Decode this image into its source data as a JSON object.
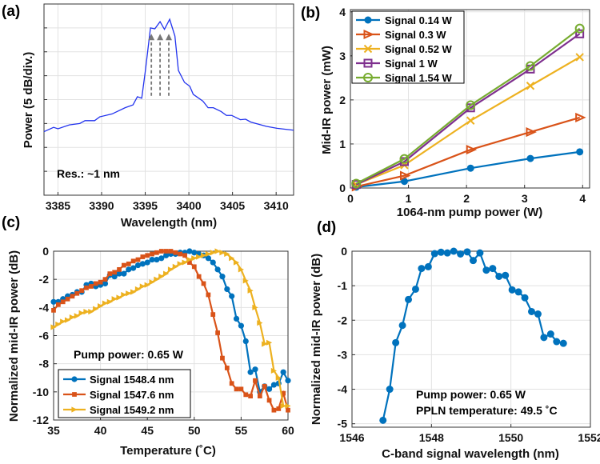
{
  "chart_data": [
    {
      "panel_label": "(a)",
      "type": "line",
      "title": "",
      "xlabel": "Wavelength (nm)",
      "ylabel": "Power (5 dB/div.)",
      "xlim": [
        3383.4,
        3412
      ],
      "ylim": [
        -40,
        0
      ],
      "xticks": [
        3385,
        3390,
        3395,
        3400,
        3405,
        3410
      ],
      "xtick_labels": [
        "3385",
        "3390",
        "3395",
        "3400",
        "3405",
        "3410"
      ],
      "yticks": [
        -40,
        -35,
        -30,
        -25,
        -20,
        -15,
        -10,
        -5,
        0
      ],
      "grid": true,
      "annotation": "Res.: ~1 nm",
      "arrows_x": [
        3395.7,
        3396.7,
        3397.7
      ],
      "arrows_y": [
        -19.2,
        -6.4
      ],
      "line_color": "#2233ee",
      "arrow_color": "#777777",
      "x": [
        3383.4,
        3384.5,
        3385,
        3386.3,
        3387.5,
        3388.1,
        3389.2,
        3389.8,
        3391.2,
        3392.7,
        3393.6,
        3394.1,
        3394.6,
        3395.0,
        3395.6,
        3396.1,
        3396.7,
        3397.2,
        3397.8,
        3398.4,
        3398.8,
        3399.5,
        3400.1,
        3400.5,
        3401.6,
        3402.2,
        3402.8,
        3403.7,
        3404.3,
        3404.9,
        3405.9,
        3406.5,
        3407.1,
        3408.9,
        3410.1,
        3412
      ],
      "y": [
        -26.7,
        -25.8,
        -26.1,
        -25.3,
        -25,
        -24.4,
        -24.4,
        -23.6,
        -23.0,
        -21.7,
        -21.1,
        -19.4,
        -19.7,
        -14.2,
        -5.0,
        -5.2,
        -3.7,
        -5.3,
        -3.2,
        -6.7,
        -13.9,
        -16.4,
        -17.2,
        -18.9,
        -20.3,
        -21.7,
        -21.7,
        -22.5,
        -23.3,
        -23.3,
        -24.2,
        -24.1,
        -24.7,
        -25.6,
        -26.0,
        -26.4
      ]
    },
    {
      "panel_label": "(b)",
      "type": "line",
      "title": "",
      "xlabel": "1064-nm pump power (W)",
      "ylabel": "Mid-IR power (mW)",
      "xlim": [
        0,
        4.12
      ],
      "ylim": [
        0,
        4.05
      ],
      "xticks": [
        0,
        1,
        2,
        3,
        4
      ],
      "xtick_labels": [
        "0",
        "1",
        "2",
        "3",
        "4"
      ],
      "yticks": [
        0,
        1,
        2,
        3,
        4
      ],
      "ytick_labels": [
        "0",
        "1",
        "2",
        "3",
        "4"
      ],
      "grid": true,
      "legend_placement": "top-left",
      "x": [
        0.1,
        0.93,
        2.07,
        3.1,
        3.95
      ],
      "series": [
        {
          "name": "Signal 0.14 W",
          "color": "#0072BD",
          "marker": "circle-filled",
          "values": [
            0.02,
            0.15,
            0.45,
            0.67,
            0.82
          ]
        },
        {
          "name": "Signal 0.3 W",
          "color": "#D95319",
          "marker": "triangle-right-open",
          "values": [
            0.03,
            0.28,
            0.87,
            1.27,
            1.6
          ]
        },
        {
          "name": "Signal 0.52 W",
          "color": "#EDB120",
          "marker": "x",
          "values": [
            0.08,
            0.52,
            1.53,
            2.32,
            2.97
          ]
        },
        {
          "name": "Signal 1 W",
          "color": "#7E2F8E",
          "marker": "square-open",
          "values": [
            0.08,
            0.6,
            1.82,
            2.7,
            3.5
          ]
        },
        {
          "name": "Signal 1.54 W",
          "color": "#77AC30",
          "marker": "circle-open",
          "values": [
            0.1,
            0.66,
            1.88,
            2.77,
            3.62
          ]
        }
      ]
    },
    {
      "panel_label": "(c)",
      "type": "line",
      "title": "",
      "xlabel": "Temperature (˚C)",
      "ylabel": "Normalized mid-IR power (dB)",
      "xlim": [
        35,
        60
      ],
      "ylim": [
        -12,
        0
      ],
      "xticks": [
        35,
        40,
        45,
        50,
        55,
        60
      ],
      "xtick_labels": [
        "35",
        "40",
        "45",
        "50",
        "55",
        "60"
      ],
      "yticks": [
        -12,
        -10,
        -8,
        -6,
        -4,
        -2,
        0
      ],
      "ytick_labels": [
        "-12",
        "-10",
        "-8",
        "-6",
        "-4",
        "-2",
        "0"
      ],
      "grid": true,
      "annotation": "Pump power: 0.65 W",
      "legend_placement": "bottom-left",
      "x_start": 35,
      "x_step": 0.5,
      "series": [
        {
          "name": "Signal 1548.4 nm",
          "color": "#0072BD",
          "marker": "circle-filled",
          "values": [
            -3.6,
            -3.6,
            -3.4,
            -3.2,
            -3.1,
            -2.9,
            -2.9,
            -2.4,
            -2.3,
            -2.5,
            -2.4,
            -2.3,
            -1.7,
            -1.8,
            -1.6,
            -1.6,
            -1.3,
            -1.2,
            -1.0,
            -0.9,
            -0.8,
            -0.6,
            -0.6,
            -0.5,
            -0.3,
            -0.2,
            -0.2,
            -0.1,
            -0.1,
            0,
            -0.1,
            -0.2,
            -0.3,
            -0.5,
            -0.8,
            -1.3,
            -1.8,
            -2.7,
            -3.2,
            -4.8,
            -5.3,
            -6.4,
            -8.6,
            -8.4,
            -10.0,
            -9.6,
            -9.8,
            -9.5,
            -9.4,
            -8.6,
            -9.2
          ]
        },
        {
          "name": "Signal 1547.6 nm",
          "color": "#D95319",
          "marker": "square-filled",
          "values": [
            -4.2,
            -3.8,
            -3.6,
            -3.4,
            -3.2,
            -3.0,
            -2.8,
            -2.6,
            -2.5,
            -2.3,
            -2.2,
            -2.0,
            -1.6,
            -1.5,
            -1.3,
            -1.0,
            -0.9,
            -0.7,
            -0.6,
            -0.4,
            -0.3,
            -0.2,
            -0.1,
            0,
            0,
            0,
            -0.1,
            -0.2,
            -0.3,
            -0.8,
            -1.1,
            -1.8,
            -2.3,
            -3.1,
            -4.5,
            -5.8,
            -7.6,
            -8.3,
            -9.4,
            -9.8,
            -9.8,
            -10.2,
            -10.3,
            -9.2,
            -10.3,
            -9.6,
            -10.6,
            -11.3,
            -11.2,
            -10.1,
            -11.3
          ]
        },
        {
          "name": "Signal 1549.2 nm",
          "color": "#EDB120",
          "marker": "triangle-right-filled",
          "values": [
            -5.4,
            -5.2,
            -5.0,
            -4.9,
            -4.7,
            -4.6,
            -4.4,
            -4.3,
            -4.3,
            -4.1,
            -3.9,
            -3.7,
            -3.6,
            -3.4,
            -3.3,
            -3.1,
            -3.0,
            -2.9,
            -2.7,
            -2.5,
            -2.4,
            -2.2,
            -2.0,
            -1.8,
            -1.6,
            -1.3,
            -1.1,
            -0.9,
            -0.8,
            -0.6,
            -0.5,
            -0.4,
            -0.3,
            -0.2,
            -0.1,
            0,
            -0.1,
            -0.2,
            -0.5,
            -0.8,
            -1.3,
            -2.1,
            -2.8,
            -4.0,
            -5.1,
            -6.6,
            -6.5,
            -8.5,
            -9.0,
            -11.0,
            -11.0
          ]
        }
      ]
    },
    {
      "panel_label": "(d)",
      "type": "line",
      "title": "",
      "xlabel": "C-band signal wavelength (nm)",
      "ylabel": "Normalized mid-IR power (dB)",
      "xlim": [
        1546,
        1552
      ],
      "ylim": [
        -5.1,
        0
      ],
      "xticks": [
        1546,
        1548,
        1550,
        1552
      ],
      "xtick_labels": [
        "1546",
        "1548",
        "1550",
        "1552"
      ],
      "yticks": [
        -5,
        -4,
        -3,
        -2,
        -1,
        0
      ],
      "ytick_labels": [
        "-5",
        "-4",
        "-3",
        "-2",
        "-1",
        "0"
      ],
      "grid": true,
      "annotations": [
        "Pump power: 0.65 W",
        "PPLN temperature: 49.5 ˚C"
      ],
      "series": [
        {
          "name": "data",
          "color": "#0072BD",
          "marker": "circle-filled",
          "x": [
            1546.78,
            1546.95,
            1547.1,
            1547.27,
            1547.42,
            1547.6,
            1547.75,
            1547.92,
            1548.08,
            1548.24,
            1548.4,
            1548.56,
            1548.73,
            1548.9,
            1549.05,
            1549.22,
            1549.38,
            1549.54,
            1549.7,
            1549.86,
            1550.03,
            1550.19,
            1550.35,
            1550.52,
            1550.68,
            1550.83,
            1551.0,
            1551.15,
            1551.32
          ],
          "values": [
            -4.9,
            -4.0,
            -2.65,
            -2.15,
            -1.4,
            -1.1,
            -0.5,
            -0.45,
            -0.07,
            -0.03,
            -0.05,
            0,
            -0.08,
            -0.02,
            -0.27,
            -0.05,
            -0.55,
            -0.5,
            -0.73,
            -0.7,
            -1.12,
            -1.18,
            -1.35,
            -1.75,
            -1.82,
            -2.5,
            -2.4,
            -2.62,
            -2.67
          ]
        }
      ]
    }
  ]
}
